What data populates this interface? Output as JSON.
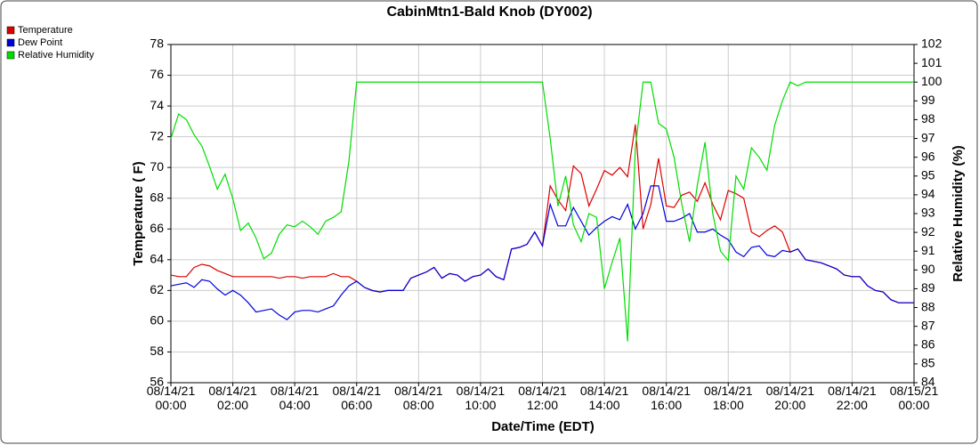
{
  "chart_data": {
    "type": "line",
    "title": "CabinMtn1-Bald Knob (DY002)",
    "x_label": "Date/Time (EDT)",
    "y_label": "Temperature ( F)",
    "y2_label": "Relative Humidity (%)",
    "x": [
      0,
      0.25,
      0.5,
      0.75,
      1,
      1.25,
      1.5,
      1.75,
      2,
      2.25,
      2.5,
      2.75,
      3,
      3.25,
      3.5,
      3.75,
      4,
      4.25,
      4.5,
      4.75,
      5,
      5.25,
      5.5,
      5.75,
      6,
      6.25,
      6.5,
      6.75,
      7,
      7.25,
      7.5,
      7.75,
      8,
      8.25,
      8.5,
      8.75,
      9,
      9.25,
      9.5,
      9.75,
      10,
      10.25,
      10.5,
      10.75,
      11,
      11.25,
      11.5,
      11.75,
      12,
      12.25,
      12.5,
      12.75,
      13,
      13.25,
      13.5,
      13.75,
      14,
      14.25,
      14.5,
      14.75,
      15,
      15.25,
      15.5,
      15.75,
      16,
      16.25,
      16.5,
      16.75,
      17,
      17.25,
      17.5,
      17.75,
      18,
      18.25,
      18.5,
      18.75,
      19,
      19.25,
      19.5,
      19.75,
      20,
      20.25,
      20.5,
      20.75,
      21,
      21.25,
      21.5,
      21.75,
      22,
      22.25,
      22.5,
      22.75,
      23,
      23.25,
      23.5,
      23.75,
      24
    ],
    "xlim": [
      0,
      24
    ],
    "xticks": [
      {
        "value": 0,
        "label": "08/14/21\n00:00"
      },
      {
        "value": 2,
        "label": "08/14/21\n02:00"
      },
      {
        "value": 4,
        "label": "08/14/21\n04:00"
      },
      {
        "value": 6,
        "label": "08/14/21\n06:00"
      },
      {
        "value": 8,
        "label": "08/14/21\n08:00"
      },
      {
        "value": 10,
        "label": "08/14/21\n10:00"
      },
      {
        "value": 12,
        "label": "08/14/21\n12:00"
      },
      {
        "value": 14,
        "label": "08/14/21\n14:00"
      },
      {
        "value": 16,
        "label": "08/14/21\n16:00"
      },
      {
        "value": 18,
        "label": "08/14/21\n18:00"
      },
      {
        "value": 20,
        "label": "08/14/21\n20:00"
      },
      {
        "value": 22,
        "label": "08/14/21\n22:00"
      },
      {
        "value": 24,
        "label": "08/15/21\n00:00"
      }
    ],
    "ylim": [
      56,
      78
    ],
    "yticks": [
      56,
      58,
      60,
      62,
      64,
      66,
      68,
      70,
      72,
      74,
      76,
      78
    ],
    "y2lim": [
      84,
      102
    ],
    "y2ticks": [
      84,
      85,
      86,
      87,
      88,
      89,
      90,
      91,
      92,
      93,
      94,
      95,
      96,
      97,
      98,
      99,
      100,
      101,
      102
    ],
    "grid": true,
    "legend": "top-left",
    "series": [
      {
        "name": "Temperature",
        "color": "#dd0000",
        "values": [
          63.0,
          62.9,
          62.9,
          63.5,
          63.7,
          63.6,
          63.3,
          63.1,
          62.9,
          62.9,
          62.9,
          62.9,
          62.9,
          62.9,
          62.8,
          62.9,
          62.9,
          62.8,
          62.9,
          62.9,
          62.9,
          63.1,
          62.9,
          62.9,
          62.6,
          62.2,
          62.0,
          61.9,
          62.0,
          62.0,
          62.0,
          62.8,
          63.0,
          63.2,
          63.5,
          62.8,
          63.1,
          63.0,
          62.6,
          62.9,
          63.0,
          63.4,
          62.9,
          62.7,
          64.7,
          64.8,
          65.0,
          65.8,
          64.9,
          68.8,
          67.9,
          67.2,
          70.1,
          69.6,
          67.5,
          68.6,
          69.8,
          69.5,
          70.0,
          69.4,
          72.8,
          66.0,
          67.6,
          70.6,
          67.5,
          67.4,
          68.2,
          68.4,
          67.8,
          69.0,
          67.6,
          66.6,
          68.5,
          68.3,
          68.0,
          65.8,
          65.5,
          65.9,
          66.2,
          65.8,
          64.5,
          64.7,
          64.0,
          63.9,
          63.8,
          63.6,
          63.4,
          63.0,
          62.9,
          62.9,
          62.3,
          62.0,
          61.9,
          61.4,
          61.2,
          61.2,
          61.2
        ]
      },
      {
        "name": "Dew Point",
        "color": "#0000dd",
        "values": [
          62.3,
          62.4,
          62.5,
          62.2,
          62.7,
          62.6,
          62.1,
          61.7,
          62.0,
          61.7,
          61.2,
          60.6,
          60.7,
          60.8,
          60.4,
          60.1,
          60.6,
          60.7,
          60.7,
          60.6,
          60.8,
          61.0,
          61.7,
          62.3,
          62.6,
          62.2,
          62.0,
          61.9,
          62.0,
          62.0,
          62.0,
          62.8,
          63.0,
          63.2,
          63.5,
          62.8,
          63.1,
          63.0,
          62.6,
          62.9,
          63.0,
          63.4,
          62.9,
          62.7,
          64.7,
          64.8,
          65.0,
          65.8,
          64.9,
          67.6,
          66.2,
          66.2,
          67.4,
          66.5,
          65.6,
          66.1,
          66.5,
          66.8,
          66.6,
          67.6,
          66.0,
          67.0,
          68.8,
          68.8,
          66.5,
          66.5,
          66.7,
          67.0,
          65.8,
          65.8,
          66.0,
          65.6,
          65.3,
          64.5,
          64.2,
          64.8,
          64.9,
          64.3,
          64.2,
          64.6,
          64.5,
          64.7,
          64.0,
          63.9,
          63.8,
          63.6,
          63.4,
          63.0,
          62.9,
          62.9,
          62.3,
          62.0,
          61.9,
          61.4,
          61.2,
          61.2,
          61.2
        ]
      },
      {
        "name": "Relative Humidity",
        "color": "#00dd00",
        "axis": "y2",
        "values": [
          97.0,
          98.3,
          98.0,
          97.2,
          96.6,
          95.5,
          94.3,
          95.1,
          93.8,
          92.1,
          92.5,
          91.7,
          90.6,
          90.9,
          91.9,
          92.4,
          92.3,
          92.6,
          92.3,
          91.9,
          92.6,
          92.8,
          93.1,
          95.8,
          100.0,
          100.0,
          100.0,
          100.0,
          100.0,
          100.0,
          100.0,
          100.0,
          100.0,
          100.0,
          100.0,
          100.0,
          100.0,
          100.0,
          100.0,
          100.0,
          100.0,
          100.0,
          100.0,
          100.0,
          100.0,
          100.0,
          100.0,
          100.0,
          100.0,
          97.0,
          93.4,
          95.0,
          92.4,
          91.5,
          93.0,
          92.8,
          89.0,
          90.4,
          91.7,
          86.2,
          96.5,
          100.0,
          100.0,
          97.8,
          97.5,
          96.0,
          93.5,
          91.5,
          94.5,
          96.8,
          93.0,
          91.0,
          90.5,
          95.0,
          94.3,
          96.5,
          96.0,
          95.3,
          97.7,
          99.0,
          100.0,
          99.8,
          100.0,
          100.0,
          100.0,
          100.0,
          100.0,
          100.0,
          100.0,
          100.0,
          100.0,
          100.0,
          100.0,
          100.0,
          100.0,
          100.0,
          100.0
        ]
      }
    ]
  }
}
